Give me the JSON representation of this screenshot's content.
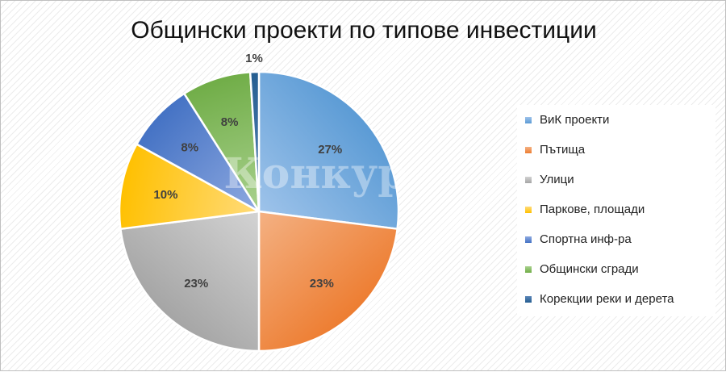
{
  "chart_data": {
    "type": "pie",
    "title": "Общински проекти по типове инвестиции",
    "categories": [
      "ВиК проекти",
      "Пътища",
      "Улици",
      "Паркове, площади",
      "Спортна инф-ра",
      "Общински сгради",
      "Корекции реки и дерета"
    ],
    "values": [
      27,
      23,
      23,
      10,
      8,
      8,
      1
    ],
    "data_labels": [
      "27%",
      "23%",
      "23%",
      "10%",
      "8%",
      "8%",
      "1%"
    ],
    "colors": [
      "#5b9bd5",
      "#ed7d31",
      "#a5a5a5",
      "#ffc000",
      "#4472c4",
      "#70ad47",
      "#255e91"
    ],
    "colors_light": [
      "#9ec3ea",
      "#f4b183",
      "#d3d3d3",
      "#ffdb7a",
      "#8ea9e0",
      "#a9d18e",
      "#5b86b8"
    ],
    "legend": "right",
    "start_angle": "12 o'clock, clockwise"
  },
  "watermark": "Конкур"
}
